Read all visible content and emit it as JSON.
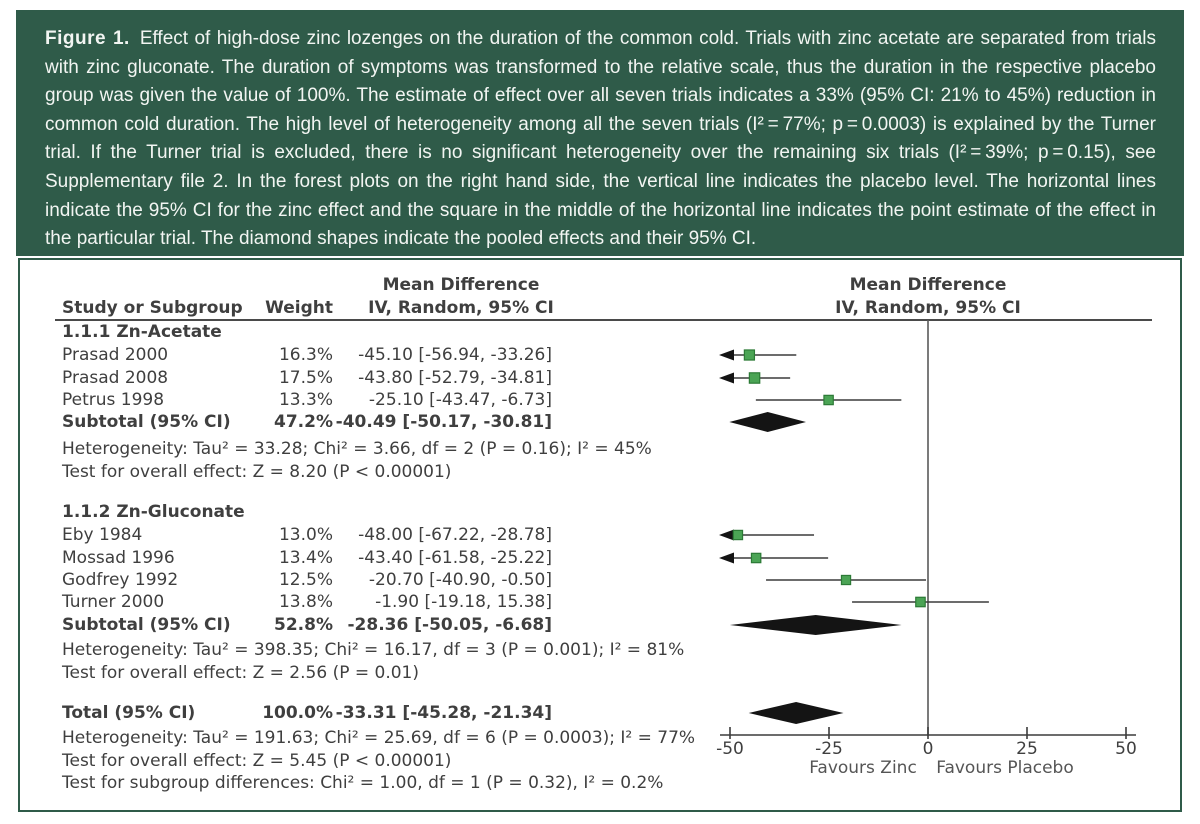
{
  "caption": {
    "label": "Figure 1.",
    "text": "Effect of high-dose zinc lozenges on the duration of the common cold. Trials with zinc acetate are separated from trials with zinc gluconate. The duration of symptoms was transformed to the relative scale, thus the duration in the respective placebo group was given the value of 100%. The estimate of effect over all seven trials indicates a 33% (95% CI: 21% to 45%) reduction in common cold duration. The high level of heterogeneity among all the seven trials (I² = 77%; p = 0.0003) is explained by the Turner trial. If the Turner trial is excluded, there is no significant heterogeneity over the remaining six trials (I² = 39%; p = 0.15), see Supplementary file 2. In the forest plots on the right hand side, the vertical line indicates the placebo level. The horizontal lines indicate the 95% CI for the zinc effect and the square in the middle of the horizontal line indicates the point estimate of the effect in the particular trial. The diamond shapes indicate the pooled effects and their 95% CI."
  },
  "colors": {
    "caption_bg": "#2F5B49",
    "caption_text": "#F2F5F2",
    "content_border": "#2F5B49",
    "table_text": "#3F3F3F",
    "rule": "#4A4A4A",
    "line": "#3C3C3C",
    "zero_line": "#5A5A5A",
    "axis": "#3C3C3C",
    "marker_fill": "#4BA455",
    "marker_stroke": "#2C7A36",
    "diamond": "#141414",
    "favours_text": "#555555"
  },
  "chart_data": {
    "type": "scatter",
    "subtype": "forest_plot",
    "effect_measure": "Mean Difference",
    "col_headers": {
      "study": "Study or Subgroup",
      "weight": "Weight",
      "effect_line1": "Mean Difference",
      "effect_line2": "IV, Random, 95% CI"
    },
    "plot_header": {
      "line1": "Mean Difference",
      "line2": "IV, Random, 95% CI"
    },
    "xlim": [
      -52,
      55
    ],
    "x_ticks": [
      -50,
      -25,
      0,
      25,
      50
    ],
    "x_left_label": "Favours Zinc",
    "x_right_label": "Favours Placebo",
    "sections": [
      {
        "heading": "1.1.1 Zn-Acetate",
        "studies": [
          {
            "study": "Prasad 2000",
            "weight_pct": 16.3,
            "weight": "16.3%",
            "ci_text": "-45.10 [-56.94, -33.26]",
            "point": -45.1,
            "lower": -56.94,
            "upper": -33.26
          },
          {
            "study": "Prasad 2008",
            "weight_pct": 17.5,
            "weight": "17.5%",
            "ci_text": "-43.80 [-52.79, -34.81]",
            "point": -43.8,
            "lower": -52.79,
            "upper": -34.81
          },
          {
            "study": "Petrus 1998",
            "weight_pct": 13.3,
            "weight": "13.3%",
            "ci_text": "-25.10 [-43.47, -6.73]",
            "point": -25.1,
            "lower": -43.47,
            "upper": -6.73
          }
        ],
        "subtotal": {
          "study": "Subtotal (95% CI)",
          "weight": "47.2%",
          "ci_text": "-40.49 [-50.17, -30.81]",
          "point": -40.49,
          "lower": -50.17,
          "upper": -30.81
        },
        "notes": [
          "Heterogeneity: Tau² = 33.28; Chi² = 3.66, df = 2 (P = 0.16); I² = 45%",
          "Test for overall effect: Z = 8.20 (P < 0.00001)"
        ]
      },
      {
        "heading": "1.1.2 Zn-Gluconate",
        "studies": [
          {
            "study": "Eby 1984",
            "weight_pct": 13.0,
            "weight": "13.0%",
            "ci_text": "-48.00 [-67.22, -28.78]",
            "point": -48.0,
            "lower": -67.22,
            "upper": -28.78
          },
          {
            "study": "Mossad 1996",
            "weight_pct": 13.4,
            "weight": "13.4%",
            "ci_text": "-43.40 [-61.58, -25.22]",
            "point": -43.4,
            "lower": -61.58,
            "upper": -25.22
          },
          {
            "study": "Godfrey 1992",
            "weight_pct": 12.5,
            "weight": "12.5%",
            "ci_text": "-20.70 [-40.90, -0.50]",
            "point": -20.7,
            "lower": -40.9,
            "upper": -0.5
          },
          {
            "study": "Turner 2000",
            "weight_pct": 13.8,
            "weight": "13.8%",
            "ci_text": "-1.90 [-19.18, 15.38]",
            "point": -1.9,
            "lower": -19.18,
            "upper": 15.38
          }
        ],
        "subtotal": {
          "study": "Subtotal (95% CI)",
          "weight": "52.8%",
          "ci_text": "-28.36 [-50.05, -6.68]",
          "point": -28.36,
          "lower": -50.05,
          "upper": -6.68
        },
        "notes": [
          "Heterogeneity: Tau² = 398.35; Chi² = 16.17, df = 3 (P = 0.001); I² = 81%",
          "Test for overall effect: Z = 2.56 (P = 0.01)"
        ]
      }
    ],
    "total": {
      "study": "Total (95% CI)",
      "weight": "100.0%",
      "ci_text": "-33.31 [-45.28, -21.34]",
      "point": -33.31,
      "lower": -45.28,
      "upper": -21.34,
      "notes": [
        "Heterogeneity: Tau² = 191.63; Chi² = 25.69, df = 6 (P = 0.0003); I² = 77%",
        "Test for overall effect: Z = 5.45 (P < 0.00001)",
        "Test for subgroup differences: Chi² = 1.00, df = 1 (P = 0.32), I² = 0.2%"
      ]
    }
  }
}
